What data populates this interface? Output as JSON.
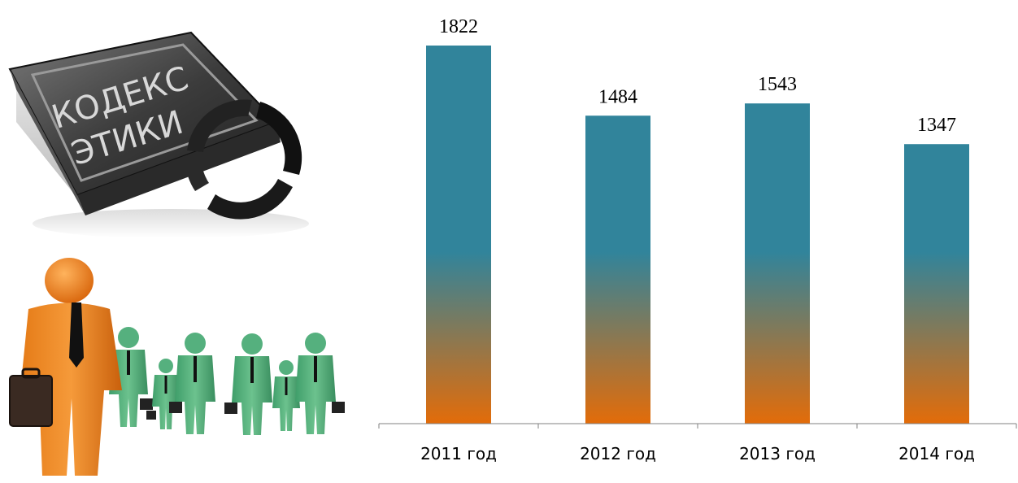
{
  "illustration": {
    "book_text_line1": "КОДЕКС",
    "book_text_line2": "ЭТИКИ"
  },
  "chart_data": {
    "type": "bar",
    "categories": [
      "2011 год",
      "2012 год",
      "2013 год",
      "2014 год"
    ],
    "values": [
      1822,
      1484,
      1543,
      1347
    ],
    "title": "",
    "xlabel": "",
    "ylabel": "",
    "ylim": [
      0,
      1822
    ],
    "grid": false,
    "legend": "none",
    "data_labels": true,
    "colors": {
      "bar_top": "#31849b",
      "bar_bottom": "#e36c09",
      "axis": "#808080"
    }
  }
}
